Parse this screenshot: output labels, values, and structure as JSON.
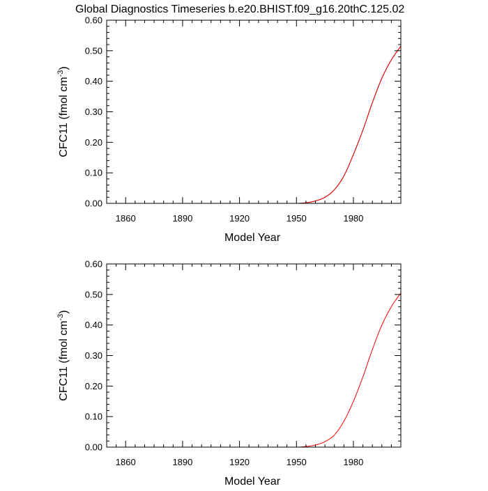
{
  "figure": {
    "title": "Global Diagnostics Timeseries b.e20.BHIST.f09_g16.20thC.125.02"
  },
  "chart_data": [
    {
      "type": "line",
      "xlabel": "Model Year",
      "ylabel_main": "CFC11 (fmol cm",
      "ylabel_sup": "-3",
      "ylabel_close": ")",
      "xlim": [
        1850,
        2005
      ],
      "ylim": [
        0,
        0.6
      ],
      "xticks": [
        1860,
        1890,
        1920,
        1950,
        1980
      ],
      "xtick_labels": [
        "1860",
        "1890",
        "1920",
        "1950",
        "1980"
      ],
      "yticks": [
        0,
        0.1,
        0.2,
        0.3,
        0.4,
        0.5,
        0.6
      ],
      "ytick_labels": [
        "0.00",
        "0.10",
        "0.20",
        "0.30",
        "0.40",
        "0.50",
        "0.60"
      ],
      "grid": false,
      "series": [
        {
          "color": "#000000",
          "x": [
            1850,
            1940,
            1950,
            1955,
            1960,
            1965,
            1970,
            1975,
            1980,
            1985,
            1990,
            1995,
            2000,
            2005
          ],
          "y": [
            0,
            0,
            0.0,
            0.002,
            0.008,
            0.02,
            0.045,
            0.09,
            0.16,
            0.24,
            0.33,
            0.41,
            0.47,
            0.515
          ]
        },
        {
          "color": "#ff0000",
          "x": [
            1850,
            1940,
            1950,
            1955,
            1960,
            1965,
            1970,
            1975,
            1980,
            1985,
            1990,
            1995,
            2000,
            2005
          ],
          "y": [
            0,
            0,
            0.0,
            0.002,
            0.008,
            0.02,
            0.045,
            0.09,
            0.16,
            0.24,
            0.33,
            0.41,
            0.47,
            0.515
          ]
        }
      ]
    },
    {
      "type": "line",
      "xlabel": "Model Year",
      "ylabel_main": "CFC11 (fmol cm",
      "ylabel_sup": "-3",
      "ylabel_close": ")",
      "xlim": [
        1850,
        2005
      ],
      "ylim": [
        0,
        0.6
      ],
      "xticks": [
        1860,
        1890,
        1920,
        1950,
        1980
      ],
      "xtick_labels": [
        "1860",
        "1890",
        "1920",
        "1950",
        "1980"
      ],
      "yticks": [
        0,
        0.1,
        0.2,
        0.3,
        0.4,
        0.5,
        0.6
      ],
      "ytick_labels": [
        "0.00",
        "0.10",
        "0.20",
        "0.30",
        "0.40",
        "0.50",
        "0.60"
      ],
      "grid": false,
      "series": [
        {
          "color": "#ff0000",
          "x": [
            1850,
            1940,
            1950,
            1955,
            1960,
            1965,
            1970,
            1975,
            1980,
            1985,
            1990,
            1995,
            2000,
            2005
          ],
          "y": [
            0,
            0,
            0.0,
            0.002,
            0.007,
            0.018,
            0.04,
            0.085,
            0.15,
            0.23,
            0.32,
            0.4,
            0.46,
            0.505
          ]
        }
      ]
    }
  ]
}
